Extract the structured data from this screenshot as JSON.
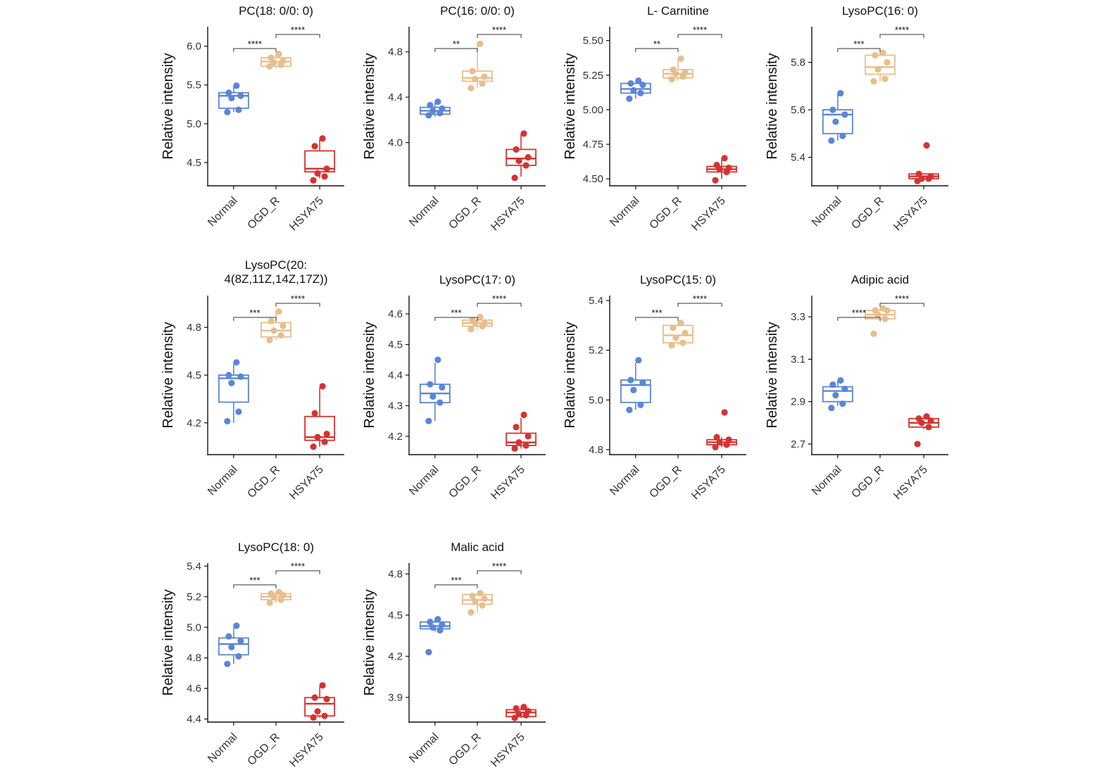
{
  "colors": {
    "Normal": "#5B86D6",
    "OGD_R": "#E8BE8C",
    "HSYA75": "#D43431"
  },
  "chart_data": [
    {
      "type": "boxplot",
      "title": "PC(18: 0/0: 0)",
      "ylabel": "Relative intensity",
      "categories": [
        "Normal",
        "OGD_R",
        "HSYA75"
      ],
      "ylim": [
        4.2,
        6.25
      ],
      "yticks": [
        4.5,
        5.0,
        5.5,
        6.0
      ],
      "ytick_labels": [
        "4.5",
        "5.0",
        "5.5",
        "6.0"
      ],
      "boxes": [
        {
          "q1": 5.2,
          "median": 5.36,
          "q3": 5.4,
          "whisker_low": 5.15,
          "whisker_high": 5.48
        },
        {
          "q1": 5.74,
          "median": 5.8,
          "q3": 5.85,
          "whisker_low": 5.72,
          "whisker_high": 5.9
        },
        {
          "q1": 4.38,
          "median": 4.42,
          "q3": 4.65,
          "whisker_low": 4.3,
          "whisker_high": 4.8
        }
      ],
      "points": [
        [
          5.15,
          5.18,
          5.33,
          5.36,
          5.4,
          5.49
        ],
        [
          5.74,
          5.76,
          5.79,
          5.81,
          5.85,
          5.9
        ],
        [
          4.27,
          4.32,
          4.36,
          4.42,
          4.71,
          4.81
        ]
      ],
      "comparisons": [
        {
          "from": 0,
          "to": 1,
          "label": "****"
        },
        {
          "from": 1,
          "to": 2,
          "label": "****"
        }
      ]
    },
    {
      "type": "boxplot",
      "title": "PC(16: 0/0: 0)",
      "ylabel": "Relative intensity",
      "categories": [
        "Normal",
        "OGD_R",
        "HSYA75"
      ],
      "ylim": [
        3.62,
        5.02
      ],
      "yticks": [
        4.0,
        4.4,
        4.8
      ],
      "ytick_labels": [
        "4.0",
        "4.4",
        "4.8"
      ],
      "boxes": [
        {
          "q1": 4.25,
          "median": 4.28,
          "q3": 4.31,
          "whisker_low": 4.23,
          "whisker_high": 4.35
        },
        {
          "q1": 4.54,
          "median": 4.57,
          "q3": 4.63,
          "whisker_low": 4.48,
          "whisker_high": 4.87
        },
        {
          "q1": 3.8,
          "median": 3.86,
          "q3": 3.94,
          "whisker_low": 3.7,
          "whisker_high": 4.08
        }
      ],
      "points": [
        [
          4.24,
          4.26,
          4.28,
          4.3,
          4.33,
          4.36
        ],
        [
          4.48,
          4.52,
          4.56,
          4.58,
          4.63,
          4.87
        ],
        [
          3.69,
          3.8,
          3.84,
          3.87,
          3.94,
          4.08
        ]
      ],
      "comparisons": [
        {
          "from": 0,
          "to": 1,
          "label": "**"
        },
        {
          "from": 1,
          "to": 2,
          "label": "****"
        }
      ]
    },
    {
      "type": "boxplot",
      "title": "L- Carnitine",
      "ylabel": "Relative intensity",
      "categories": [
        "Normal",
        "OGD_R",
        "HSYA75"
      ],
      "ylim": [
        4.45,
        5.6
      ],
      "yticks": [
        4.5,
        4.75,
        5.0,
        5.25,
        5.5
      ],
      "ytick_labels": [
        "4.50",
        "4.75",
        "5.00",
        "5.25",
        "5.50"
      ],
      "boxes": [
        {
          "q1": 5.12,
          "median": 5.15,
          "q3": 5.19,
          "whisker_low": 5.08,
          "whisker_high": 5.2
        },
        {
          "q1": 5.23,
          "median": 5.26,
          "q3": 5.29,
          "whisker_low": 5.21,
          "whisker_high": 5.37
        },
        {
          "q1": 4.55,
          "median": 4.57,
          "q3": 4.59,
          "whisker_low": 4.5,
          "whisker_high": 4.65
        }
      ],
      "points": [
        [
          5.08,
          5.12,
          5.14,
          5.18,
          5.19,
          5.21
        ],
        [
          5.22,
          5.24,
          5.26,
          5.27,
          5.29,
          5.37
        ],
        [
          4.49,
          4.55,
          4.57,
          4.58,
          4.6,
          4.65
        ]
      ],
      "comparisons": [
        {
          "from": 0,
          "to": 1,
          "label": "**"
        },
        {
          "from": 1,
          "to": 2,
          "label": "****"
        }
      ]
    },
    {
      "type": "boxplot",
      "title": "LysoPC(16: 0)",
      "ylabel": "Relative intensity",
      "categories": [
        "Normal",
        "OGD_R",
        "HSYA75"
      ],
      "ylim": [
        5.28,
        5.95
      ],
      "yticks": [
        5.4,
        5.6,
        5.8
      ],
      "ytick_labels": [
        "5.4",
        "5.6",
        "5.8"
      ],
      "boxes": [
        {
          "q1": 5.5,
          "median": 5.58,
          "q3": 5.6,
          "whisker_low": 5.47,
          "whisker_high": 5.67
        },
        {
          "q1": 5.75,
          "median": 5.78,
          "q3": 5.83,
          "whisker_low": 5.72,
          "whisker_high": 5.85
        },
        {
          "q1": 5.31,
          "median": 5.32,
          "q3": 5.33,
          "whisker_low": 5.3,
          "whisker_high": 5.33
        }
      ],
      "points": [
        [
          5.47,
          5.49,
          5.55,
          5.58,
          5.6,
          5.67
        ],
        [
          5.72,
          5.73,
          5.77,
          5.8,
          5.83,
          5.84
        ],
        [
          5.3,
          5.31,
          5.31,
          5.32,
          5.33,
          5.45
        ]
      ],
      "comparisons": [
        {
          "from": 0,
          "to": 1,
          "label": "***"
        },
        {
          "from": 1,
          "to": 2,
          "label": "****"
        }
      ]
    },
    {
      "type": "boxplot",
      "title": "LysoPC(20:",
      "title_line2": "4(8Z,11Z,14Z,17Z))",
      "ylabel": "Relative intensity",
      "categories": [
        "Normal",
        "OGD_R",
        "HSYA75"
      ],
      "ylim": [
        4.0,
        5.0
      ],
      "yticks": [
        4.2,
        4.5,
        4.8
      ],
      "ytick_labels": [
        "4.2",
        "4.5",
        "4.8"
      ],
      "boxes": [
        {
          "q1": 4.33,
          "median": 4.48,
          "q3": 4.5,
          "whisker_low": 4.2,
          "whisker_high": 4.57
        },
        {
          "q1": 4.74,
          "median": 4.78,
          "q3": 4.83,
          "whisker_low": 4.72,
          "whisker_high": 4.9
        },
        {
          "q1": 4.09,
          "median": 4.11,
          "q3": 4.24,
          "whisker_low": 4.05,
          "whisker_high": 4.42
        }
      ],
      "points": [
        [
          4.21,
          4.27,
          4.45,
          4.49,
          4.5,
          4.58
        ],
        [
          4.72,
          4.75,
          4.78,
          4.81,
          4.84,
          4.9
        ],
        [
          4.05,
          4.08,
          4.11,
          4.13,
          4.26,
          4.43
        ]
      ],
      "comparisons": [
        {
          "from": 0,
          "to": 1,
          "label": "***"
        },
        {
          "from": 1,
          "to": 2,
          "label": "****"
        }
      ]
    },
    {
      "type": "boxplot",
      "title": "LysoPC(17: 0)",
      "ylabel": "Relative intensity",
      "categories": [
        "Normal",
        "OGD_R",
        "HSYA75"
      ],
      "ylim": [
        4.14,
        4.66
      ],
      "yticks": [
        4.2,
        4.3,
        4.4,
        4.5,
        4.6
      ],
      "ytick_labels": [
        "4.2",
        "4.3",
        "4.4",
        "4.5",
        "4.6"
      ],
      "boxes": [
        {
          "q1": 4.31,
          "median": 4.34,
          "q3": 4.37,
          "whisker_low": 4.25,
          "whisker_high": 4.44
        },
        {
          "q1": 4.56,
          "median": 4.57,
          "q3": 4.58,
          "whisker_low": 4.55,
          "whisker_high": 4.59
        },
        {
          "q1": 4.17,
          "median": 4.18,
          "q3": 4.21,
          "whisker_low": 4.16,
          "whisker_high": 4.26
        }
      ],
      "points": [
        [
          4.25,
          4.31,
          4.33,
          4.36,
          4.37,
          4.45
        ],
        [
          4.55,
          4.56,
          4.57,
          4.57,
          4.58,
          4.59
        ],
        [
          4.16,
          4.17,
          4.18,
          4.2,
          4.23,
          4.27
        ]
      ],
      "comparisons": [
        {
          "from": 0,
          "to": 1,
          "label": "***"
        },
        {
          "from": 1,
          "to": 2,
          "label": "****"
        }
      ]
    },
    {
      "type": "boxplot",
      "title": "LysoPC(15: 0)",
      "ylabel": "Relative intensity",
      "categories": [
        "Normal",
        "OGD_R",
        "HSYA75"
      ],
      "ylim": [
        4.78,
        5.42
      ],
      "yticks": [
        4.8,
        5.0,
        5.2,
        5.4
      ],
      "ytick_labels": [
        "4.8",
        "5.0",
        "5.2",
        "5.4"
      ],
      "boxes": [
        {
          "q1": 4.99,
          "median": 5.06,
          "q3": 5.08,
          "whisker_low": 4.96,
          "whisker_high": 5.15
        },
        {
          "q1": 5.23,
          "median": 5.26,
          "q3": 5.3,
          "whisker_low": 5.22,
          "whisker_high": 5.31
        },
        {
          "q1": 4.82,
          "median": 4.83,
          "q3": 4.84,
          "whisker_low": 4.81,
          "whisker_high": 4.85
        }
      ],
      "points": [
        [
          4.96,
          4.98,
          5.04,
          5.07,
          5.08,
          5.16
        ],
        [
          5.22,
          5.23,
          5.25,
          5.27,
          5.29,
          5.31
        ],
        [
          4.81,
          4.82,
          4.83,
          4.84,
          4.85,
          4.95
        ]
      ],
      "comparisons": [
        {
          "from": 0,
          "to": 1,
          "label": "***"
        },
        {
          "from": 1,
          "to": 2,
          "label": "****"
        }
      ]
    },
    {
      "type": "boxplot",
      "title": "Adipic acid",
      "ylabel": "Relative intensity",
      "categories": [
        "Normal",
        "OGD_R",
        "HSYA75"
      ],
      "ylim": [
        2.65,
        3.4
      ],
      "yticks": [
        2.7,
        2.9,
        3.1,
        3.3
      ],
      "ytick_labels": [
        "2.7",
        "2.9",
        "3.1",
        "3.3"
      ],
      "boxes": [
        {
          "q1": 2.9,
          "median": 2.95,
          "q3": 2.97,
          "whisker_low": 2.88,
          "whisker_high": 3.0
        },
        {
          "q1": 3.29,
          "median": 3.31,
          "q3": 3.33,
          "whisker_low": 3.28,
          "whisker_high": 3.34
        },
        {
          "q1": 2.78,
          "median": 2.8,
          "q3": 2.82,
          "whisker_low": 2.77,
          "whisker_high": 2.83
        }
      ],
      "points": [
        [
          2.87,
          2.89,
          2.93,
          2.96,
          2.98,
          3.0
        ],
        [
          3.22,
          3.29,
          3.31,
          3.33,
          3.33,
          3.34
        ],
        [
          2.7,
          2.78,
          2.8,
          2.81,
          2.82,
          2.83
        ]
      ],
      "comparisons": [
        {
          "from": 0,
          "to": 1,
          "label": "****"
        },
        {
          "from": 1,
          "to": 2,
          "label": "****"
        }
      ]
    },
    {
      "type": "boxplot",
      "title": "LysoPC(18: 0)",
      "ylabel": "Relative intensity",
      "categories": [
        "Normal",
        "OGD_R",
        "HSYA75"
      ],
      "ylim": [
        4.38,
        5.42
      ],
      "yticks": [
        4.4,
        4.6,
        4.8,
        5.0,
        5.2,
        5.4
      ],
      "ytick_labels": [
        "4.4",
        "4.6",
        "4.8",
        "5.0",
        "5.2",
        "5.4"
      ],
      "boxes": [
        {
          "q1": 4.82,
          "median": 4.89,
          "q3": 4.93,
          "whisker_low": 4.76,
          "whisker_high": 5.0
        },
        {
          "q1": 5.18,
          "median": 5.2,
          "q3": 5.22,
          "whisker_low": 5.16,
          "whisker_high": 5.23
        },
        {
          "q1": 4.42,
          "median": 4.5,
          "q3": 4.54,
          "whisker_low": 4.41,
          "whisker_high": 4.61
        }
      ],
      "points": [
        [
          4.76,
          4.81,
          4.87,
          4.91,
          4.94,
          5.01
        ],
        [
          5.16,
          5.18,
          5.2,
          5.21,
          5.22,
          5.23
        ],
        [
          4.41,
          4.42,
          4.45,
          4.53,
          4.54,
          4.62
        ]
      ],
      "comparisons": [
        {
          "from": 0,
          "to": 1,
          "label": "***"
        },
        {
          "from": 1,
          "to": 2,
          "label": "****"
        }
      ]
    },
    {
      "type": "boxplot",
      "title": "Malic acid",
      "ylabel": "Relative intensity",
      "categories": [
        "Normal",
        "OGD_R",
        "HSYA75"
      ],
      "ylim": [
        3.72,
        4.88
      ],
      "yticks": [
        3.9,
        4.2,
        4.5,
        4.8
      ],
      "ytick_labels": [
        "3.9",
        "4.2",
        "4.5",
        "4.8"
      ],
      "boxes": [
        {
          "q1": 4.4,
          "median": 4.42,
          "q3": 4.45,
          "whisker_low": 4.38,
          "whisker_high": 4.47
        },
        {
          "q1": 4.58,
          "median": 4.61,
          "q3": 4.65,
          "whisker_low": 4.52,
          "whisker_high": 4.66
        },
        {
          "q1": 3.76,
          "median": 3.79,
          "q3": 3.81,
          "whisker_low": 3.75,
          "whisker_high": 3.83
        }
      ],
      "points": [
        [
          4.23,
          4.39,
          4.41,
          4.43,
          4.45,
          4.47
        ],
        [
          4.52,
          4.57,
          4.6,
          4.62,
          4.64,
          4.66
        ],
        [
          3.75,
          3.77,
          3.78,
          3.8,
          3.82,
          3.83
        ]
      ],
      "comparisons": [
        {
          "from": 0,
          "to": 1,
          "label": "***"
        },
        {
          "from": 1,
          "to": 2,
          "label": "****"
        }
      ]
    }
  ]
}
